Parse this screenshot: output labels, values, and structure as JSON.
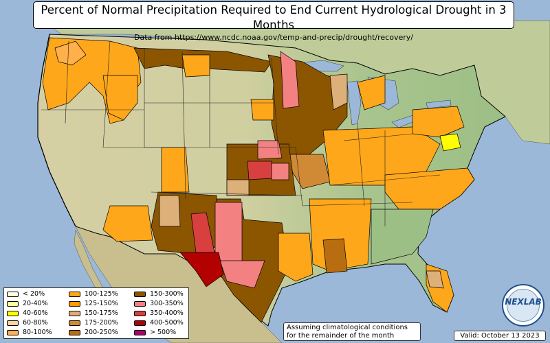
{
  "title": "Percent of Normal Precipitation Required to End Current Hydrological Drought in 3 Months",
  "subtitle": "Data from https://www.ncdc.noaa.gov/temp-and-precip/drought/recovery/",
  "legend": [
    {
      "label": "< 20%",
      "color": "#ffffe0"
    },
    {
      "label": "20-40%",
      "color": "#ffff9a"
    },
    {
      "label": "40-60%",
      "color": "#ffff00"
    },
    {
      "label": "60-80%",
      "color": "#ffd39b"
    },
    {
      "label": "80-100%",
      "color": "#ffb04a"
    },
    {
      "label": "100-125%",
      "color": "#ffa71a"
    },
    {
      "label": "125-150%",
      "color": "#ff9a00"
    },
    {
      "label": "150-175%",
      "color": "#ddb07a"
    },
    {
      "label": "175-200%",
      "color": "#d08a36"
    },
    {
      "label": "200-250%",
      "color": "#b86d10"
    },
    {
      "label": "150-300%",
      "color": "#8c5500"
    },
    {
      "label": "300-350%",
      "color": "#f48181"
    },
    {
      "label": "350-400%",
      "color": "#d84040"
    },
    {
      "label": "400-500%",
      "color": "#b30000"
    },
    {
      "label": "> 500%",
      "color": "#b0006a"
    }
  ],
  "note": {
    "line1": "Assuming climatological conditions",
    "line2": "for the remainder of the month"
  },
  "valid": "Valid: October 13 2023",
  "logo": {
    "text": "NEXLAB",
    "icon": "globe-icon"
  },
  "colors": {
    "ocean": "#9bb8d8",
    "land": "#d7d3ad",
    "land_green": "#9cbf86",
    "border": "#000000"
  }
}
